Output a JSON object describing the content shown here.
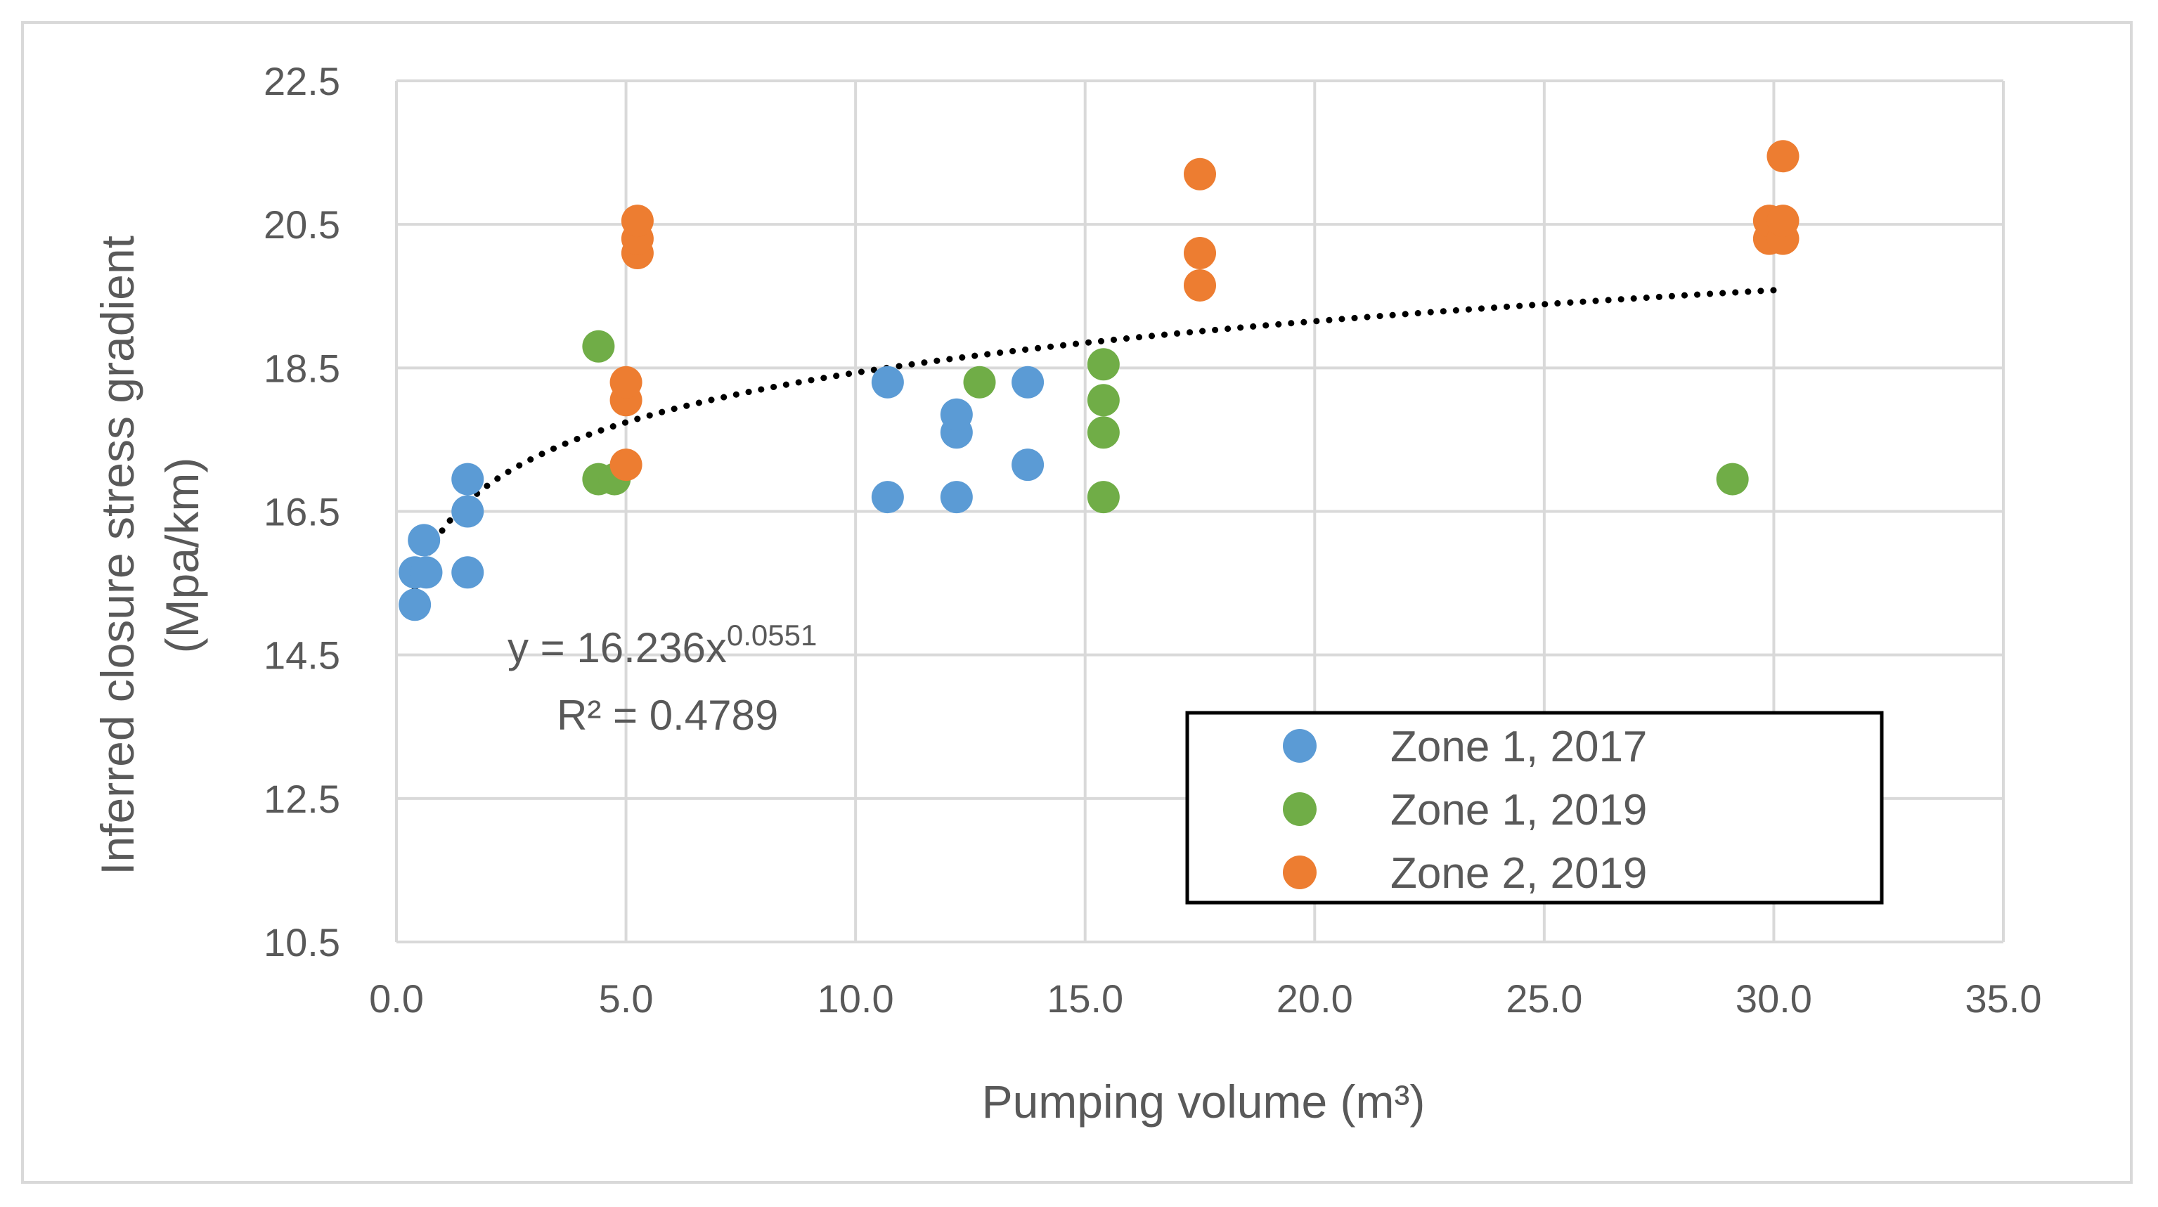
{
  "chart_data": {
    "type": "scatter",
    "title": "",
    "xlabel": "Pumping volume (m³)",
    "ylabel": "Inferred closure stress gradient (Mpa/km)",
    "ylabel_line1": "Inferred closure stress gradient",
    "ylabel_line2": "(Mpa/km)",
    "xlim": [
      0.0,
      35.0
    ],
    "ylim": [
      10.5,
      22.5
    ],
    "x_ticks": [
      "0.0",
      "5.0",
      "10.0",
      "15.0",
      "20.0",
      "25.0",
      "30.0",
      "35.0"
    ],
    "y_ticks": [
      "10.5",
      "12.5",
      "14.5",
      "16.5",
      "18.5",
      "20.5",
      "22.5"
    ],
    "grid": true,
    "legend_position": "lower-right",
    "series": [
      {
        "name": "Zone 1, 2017",
        "color": "#5b9bd5",
        "points": [
          [
            0.4,
            15.2
          ],
          [
            0.4,
            15.65
          ],
          [
            0.65,
            15.65
          ],
          [
            0.6,
            16.1
          ],
          [
            1.55,
            15.65
          ],
          [
            1.55,
            16.5
          ],
          [
            1.55,
            16.95
          ],
          [
            10.7,
            16.7
          ],
          [
            10.7,
            18.3
          ],
          [
            12.2,
            16.7
          ],
          [
            12.2,
            17.6
          ],
          [
            12.2,
            17.85
          ],
          [
            13.75,
            17.15
          ],
          [
            13.75,
            18.3
          ]
        ]
      },
      {
        "name": "Zone 1, 2019",
        "color": "#70ad47",
        "points": [
          [
            4.4,
            16.95
          ],
          [
            4.75,
            16.95
          ],
          [
            4.4,
            18.8
          ],
          [
            12.7,
            18.3
          ],
          [
            15.4,
            16.7
          ],
          [
            15.4,
            17.6
          ],
          [
            15.4,
            18.05
          ],
          [
            15.4,
            18.55
          ],
          [
            29.1,
            16.95
          ]
        ]
      },
      {
        "name": "Zone 2, 2019",
        "color": "#ed7d31",
        "points": [
          [
            5.0,
            17.15
          ],
          [
            5.0,
            18.05
          ],
          [
            5.0,
            18.3
          ],
          [
            5.25,
            20.1
          ],
          [
            5.25,
            20.3
          ],
          [
            5.25,
            20.55
          ],
          [
            17.5,
            19.65
          ],
          [
            17.5,
            20.1
          ],
          [
            17.5,
            21.2
          ],
          [
            29.9,
            20.3
          ],
          [
            29.9,
            20.55
          ],
          [
            30.2,
            20.3
          ],
          [
            30.2,
            20.55
          ],
          [
            30.2,
            21.45
          ]
        ]
      }
    ],
    "trendline": {
      "type": "power",
      "a": 16.236,
      "b": 0.0551,
      "x_range": [
        0.4,
        30.1
      ],
      "color": "#000000",
      "equation_prefix": "y = 16.236x",
      "equation_exponent": "0.0551",
      "r2_label": "R² = 0.4789"
    }
  }
}
